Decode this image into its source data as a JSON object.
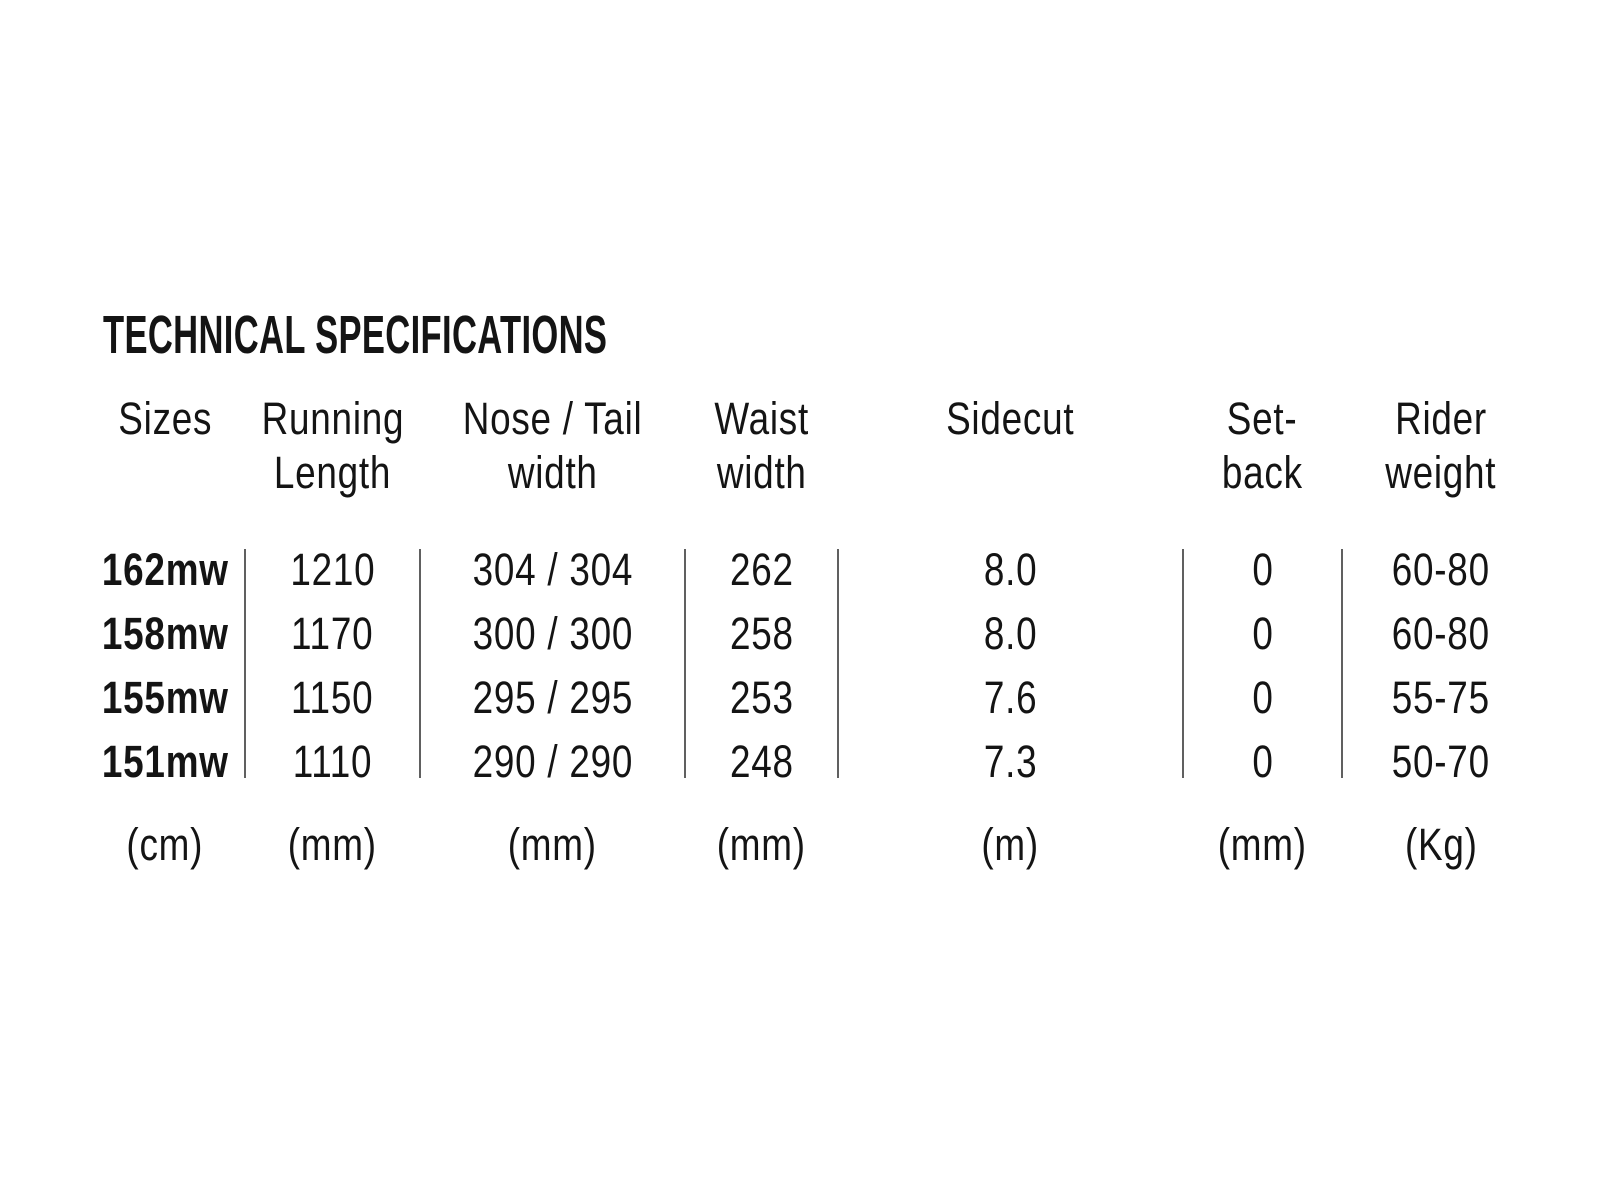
{
  "title": "TECHNICAL SPECIFICATIONS",
  "table": {
    "columns": [
      {
        "label": "Sizes",
        "label2": "",
        "unit": "(cm)"
      },
      {
        "label": "Running",
        "label2": "Length",
        "unit": "(mm)"
      },
      {
        "label": "Nose / Tail",
        "label2": "width",
        "unit": "(mm)"
      },
      {
        "label": "Waist",
        "label2": "width",
        "unit": "(mm)"
      },
      {
        "label": "Sidecut",
        "label2": "",
        "unit": "(m)"
      },
      {
        "label": "Set-",
        "label2": "back",
        "unit": "(mm)"
      },
      {
        "label": "Rider",
        "label2": "weight",
        "unit": "(Kg)"
      }
    ],
    "rows": [
      {
        "size": "162mw",
        "running_length": "1210",
        "nose_tail_width": "304 / 304",
        "waist_width": "262",
        "sidecut": "8.0",
        "setback": "0",
        "rider_weight": "60-80"
      },
      {
        "size": "158mw",
        "running_length": "1170",
        "nose_tail_width": "300 / 300",
        "waist_width": "258",
        "sidecut": "8.0",
        "setback": "0",
        "rider_weight": "60-80"
      },
      {
        "size": "155mw",
        "running_length": "1150",
        "nose_tail_width": "295 / 295",
        "waist_width": "253",
        "sidecut": "7.6",
        "setback": "0",
        "rider_weight": "55-75"
      },
      {
        "size": "151mw",
        "running_length": "1110",
        "nose_tail_width": "290 / 290",
        "waist_width": "248",
        "sidecut": "7.3",
        "setback": "0",
        "rider_weight": "50-70"
      }
    ]
  },
  "colors": {
    "text": "#141414",
    "divider": "#606060",
    "background": "#ffffff"
  }
}
